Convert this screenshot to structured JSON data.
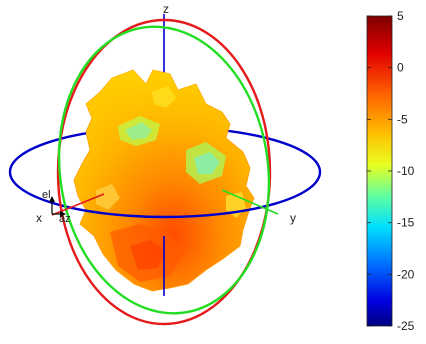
{
  "chart_data": {
    "type": "3d-radiation-pattern",
    "axes": {
      "x_label": "x",
      "y_label": "y",
      "z_label": "z",
      "az_label": "az",
      "el_label": "el"
    },
    "colorbar": {
      "min": -25,
      "max": 5,
      "ticks": [
        {
          "value": 5,
          "label": "5"
        },
        {
          "value": 0,
          "label": "0"
        },
        {
          "value": -5,
          "label": "-5"
        },
        {
          "value": -10,
          "label": "-10"
        },
        {
          "value": -15,
          "label": "-15"
        },
        {
          "value": -20,
          "label": "-20"
        },
        {
          "value": -25,
          "label": "-25"
        }
      ],
      "colormap": [
        "#7f0000",
        "#ff0000",
        "#ff8000",
        "#ffff00",
        "#80ff80",
        "#00ffff",
        "#0080ff",
        "#0000ff",
        "#00007f"
      ]
    },
    "surface_value_range": [
      -10,
      2
    ],
    "great_circles": {
      "azimuth_color": "#0000cc",
      "elevation_xz_color": "#e41a1c",
      "elevation_yz_color": "#22dd22"
    }
  }
}
